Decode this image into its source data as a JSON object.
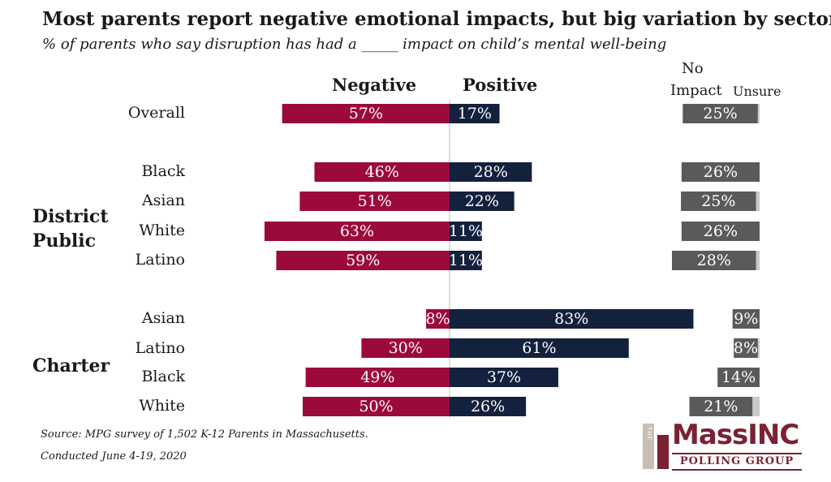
{
  "chart_data": {
    "type": "bar",
    "title": "Most parents report negative emotional impacts, but big variation by sector",
    "subtitle": "% of parents who say disruption has had a _____ impact on child’s mental well-being",
    "series": [
      {
        "name": "Negative",
        "color": "#9b0a3a"
      },
      {
        "name": "Positive",
        "color": "#14213d"
      },
      {
        "name": "No Impact",
        "color": "#5a5a5a"
      },
      {
        "name": "Unsure",
        "color": "#c8c8c8"
      }
    ],
    "groups": [
      {
        "name": "",
        "rows": [
          {
            "label": "Overall",
            "negative": 57,
            "positive": 17,
            "no_impact": 25,
            "unsure": 1
          }
        ]
      },
      {
        "name": "District Public",
        "rows": [
          {
            "label": "Black",
            "negative": 46,
            "positive": 28,
            "no_impact": 26,
            "unsure": 0
          },
          {
            "label": "Asian",
            "negative": 51,
            "positive": 22,
            "no_impact": 25,
            "unsure": 2
          },
          {
            "label": "White",
            "negative": 63,
            "positive": 11,
            "no_impact": 26,
            "unsure": 0
          },
          {
            "label": "Latino",
            "negative": 59,
            "positive": 11,
            "no_impact": 28,
            "unsure": 2
          }
        ]
      },
      {
        "name": "Charter",
        "rows": [
          {
            "label": "Asian",
            "negative": 8,
            "positive": 83,
            "no_impact": 9,
            "unsure": 0
          },
          {
            "label": "Latino",
            "negative": 30,
            "positive": 61,
            "no_impact": 8,
            "unsure": 1
          },
          {
            "label": "Black",
            "negative": 49,
            "positive": 37,
            "no_impact": 14,
            "unsure": 0
          },
          {
            "label": "White",
            "negative": 50,
            "positive": 26,
            "no_impact": 21,
            "unsure": 4
          }
        ]
      }
    ]
  },
  "headers": {
    "negative": "Negative",
    "positive": "Positive",
    "no_impact_line1": "No",
    "no_impact_line2": "Impact",
    "unsure": "Unsure"
  },
  "group_labels": {
    "district_line1": "District",
    "district_line2": "Public",
    "charter": "Charter"
  },
  "source": {
    "line1": "Source: MPG survey of 1,502 K-12 Parents in Massachusetts.",
    "line2": "Conducted June 4-19, 2020"
  },
  "logo": {
    "the": "THE",
    "main": "MassINC",
    "sub": "POLLING GROUP"
  }
}
